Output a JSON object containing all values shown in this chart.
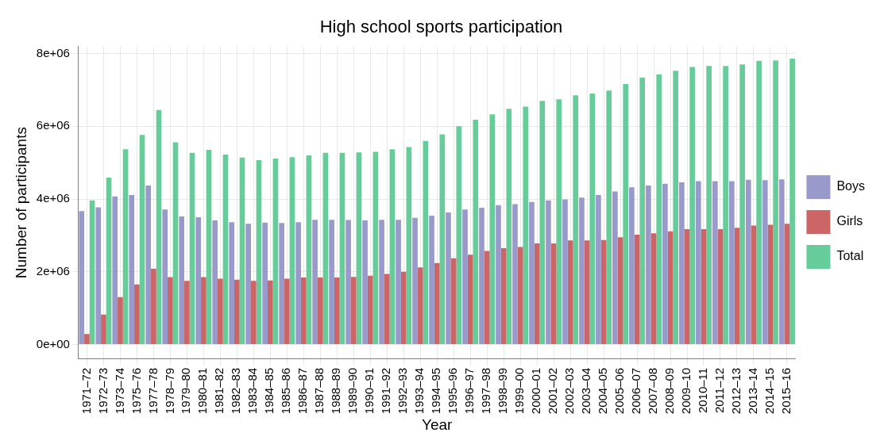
{
  "chart_data": {
    "type": "bar",
    "title": "High school sports participation",
    "xlabel": "Year",
    "ylabel": "Number of participants",
    "categories": [
      "1971–72",
      "1972–73",
      "1973–74",
      "1975–76",
      "1977–78",
      "1978–79",
      "1979–80",
      "1980–81",
      "1981–82",
      "1982–83",
      "1983–84",
      "1984–85",
      "1985–86",
      "1986–87",
      "1987–88",
      "1988–89",
      "1989–90",
      "1990–91",
      "1991–92",
      "1992–93",
      "1993–94",
      "1994–95",
      "1995–96",
      "1996–97",
      "1997–98",
      "1998–99",
      "1999–00",
      "2000–01",
      "2001–02",
      "2002–03",
      "2003–04",
      "2004–05",
      "2005–06",
      "2006–07",
      "2007–08",
      "2008–09",
      "2009–10",
      "2010–11",
      "2011–12",
      "2012–13",
      "2013–14",
      "2014–15",
      "2015–16"
    ],
    "series": [
      {
        "name": "Boys",
        "color": "#9999cc",
        "values": [
          3670000,
          3770000,
          4070000,
          4110000,
          4370000,
          3710000,
          3520000,
          3500000,
          3410000,
          3360000,
          3320000,
          3350000,
          3340000,
          3360000,
          3430000,
          3430000,
          3420000,
          3410000,
          3430000,
          3430000,
          3480000,
          3540000,
          3630000,
          3710000,
          3760000,
          3830000,
          3860000,
          3920000,
          3960000,
          3990000,
          4040000,
          4110000,
          4210000,
          4320000,
          4370000,
          4420000,
          4460000,
          4490000,
          4490000,
          4490000,
          4530000,
          4520000,
          4540000
        ]
      },
      {
        "name": "Girls",
        "color": "#cc6666",
        "values": [
          290000,
          820000,
          1300000,
          1650000,
          2080000,
          1850000,
          1750000,
          1850000,
          1810000,
          1780000,
          1750000,
          1760000,
          1810000,
          1840000,
          1840000,
          1840000,
          1860000,
          1890000,
          1940000,
          2000000,
          2120000,
          2240000,
          2370000,
          2470000,
          2570000,
          2650000,
          2680000,
          2780000,
          2780000,
          2860000,
          2860000,
          2870000,
          2950000,
          3020000,
          3060000,
          3110000,
          3170000,
          3170000,
          3170000,
          3210000,
          3270000,
          3290000,
          3320000
        ]
      },
      {
        "name": "Total",
        "color": "#66cc99",
        "values": [
          3960000,
          4590000,
          5370000,
          5760000,
          6450000,
          5560000,
          5270000,
          5350000,
          5220000,
          5140000,
          5070000,
          5110000,
          5150000,
          5200000,
          5270000,
          5270000,
          5280000,
          5300000,
          5370000,
          5430000,
          5600000,
          5780000,
          6000000,
          6180000,
          6330000,
          6480000,
          6540000,
          6700000,
          6740000,
          6850000,
          6900000,
          6980000,
          7160000,
          7340000,
          7430000,
          7530000,
          7630000,
          7660000,
          7660000,
          7700000,
          7800000,
          7810000,
          7860000
        ]
      }
    ],
    "ylim": [
      -400000,
      8200000
    ],
    "yticks": [
      {
        "value": 0,
        "label": "0e+00"
      },
      {
        "value": 2000000,
        "label": "2e+06"
      },
      {
        "value": 4000000,
        "label": "4e+06"
      },
      {
        "value": 6000000,
        "label": "6e+06"
      },
      {
        "value": 8000000,
        "label": "8e+06"
      }
    ],
    "grid": true,
    "legend": "right"
  }
}
